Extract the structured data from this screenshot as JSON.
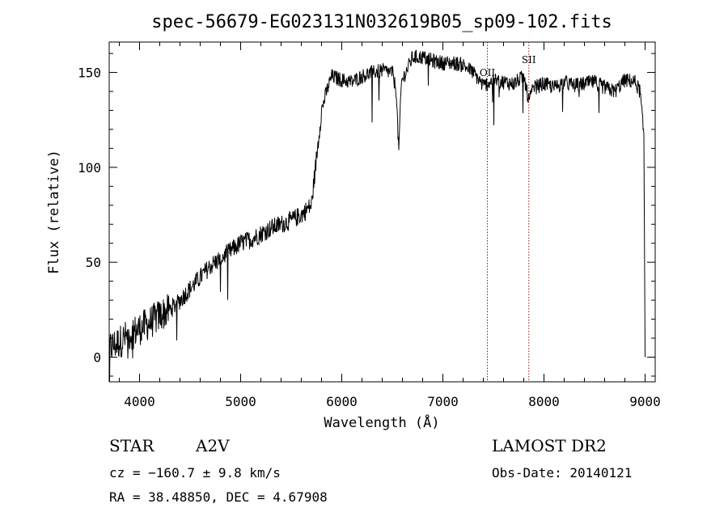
{
  "chart_data": {
    "type": "line",
    "title": "spec-56679-EG023131N032619B05_sp09-102.fits",
    "xlabel": "Wavelength (Å)",
    "ylabel": "Flux (relative)",
    "xlim": [
      3700,
      9100
    ],
    "ylim": [
      -13,
      166
    ],
    "xticks": [
      4000,
      5000,
      6000,
      7000,
      8000,
      9000
    ],
    "xtick_labels": [
      "4000",
      "5000",
      "6000",
      "7000",
      "8000",
      "9000"
    ],
    "yticks": [
      0,
      50,
      100,
      150
    ],
    "ytick_labels": [
      "0",
      "50",
      "100",
      "150"
    ],
    "grid": false,
    "line_color": "#000000",
    "marker_color": "#8b1a1a",
    "series": [
      {
        "x": [
          3700,
          3800,
          3900,
          4000,
          4100,
          4200,
          4300,
          4400,
          4500,
          4600,
          4700,
          4800,
          4900,
          5000,
          5100,
          5200,
          5300,
          5400,
          5500,
          5600,
          5700,
          5760,
          5800,
          5850,
          5900,
          6000,
          6100,
          6200,
          6300,
          6400,
          6500,
          6540,
          6563,
          6590,
          6650,
          6700,
          6800,
          6900,
          7000,
          7100,
          7200,
          7300,
          7400,
          7500,
          7600,
          7700,
          7800,
          7850,
          7900,
          8000,
          8100,
          8200,
          8300,
          8400,
          8500,
          8600,
          8700,
          8800,
          8900,
          8950,
          8990,
          9000
        ],
        "y": [
          5,
          8,
          12,
          15,
          18,
          22,
          25,
          30,
          36,
          42,
          48,
          52,
          56,
          60,
          62,
          65,
          68,
          70,
          72,
          75,
          80,
          110,
          130,
          140,
          148,
          146,
          145,
          148,
          150,
          151,
          150,
          140,
          108,
          145,
          152,
          158,
          158,
          156,
          155,
          155,
          154,
          150,
          143,
          146,
          145,
          144,
          148,
          135,
          142,
          144,
          142,
          145,
          143,
          144,
          145,
          142,
          140,
          146,
          145,
          140,
          115,
          0
        ]
      }
    ],
    "lines": [
      {
        "x": 7440,
        "label": "OII"
      },
      {
        "x": 7850,
        "label": "SII"
      }
    ]
  },
  "info": {
    "class": "STAR",
    "subclass": "A2V",
    "survey": "LAMOST DR2",
    "cz": "cz = −160.7 ± 9.8 km/s",
    "obs_date": "Obs-Date: 20140121",
    "coords": "RA =  38.48850, DEC =   4.67908"
  }
}
